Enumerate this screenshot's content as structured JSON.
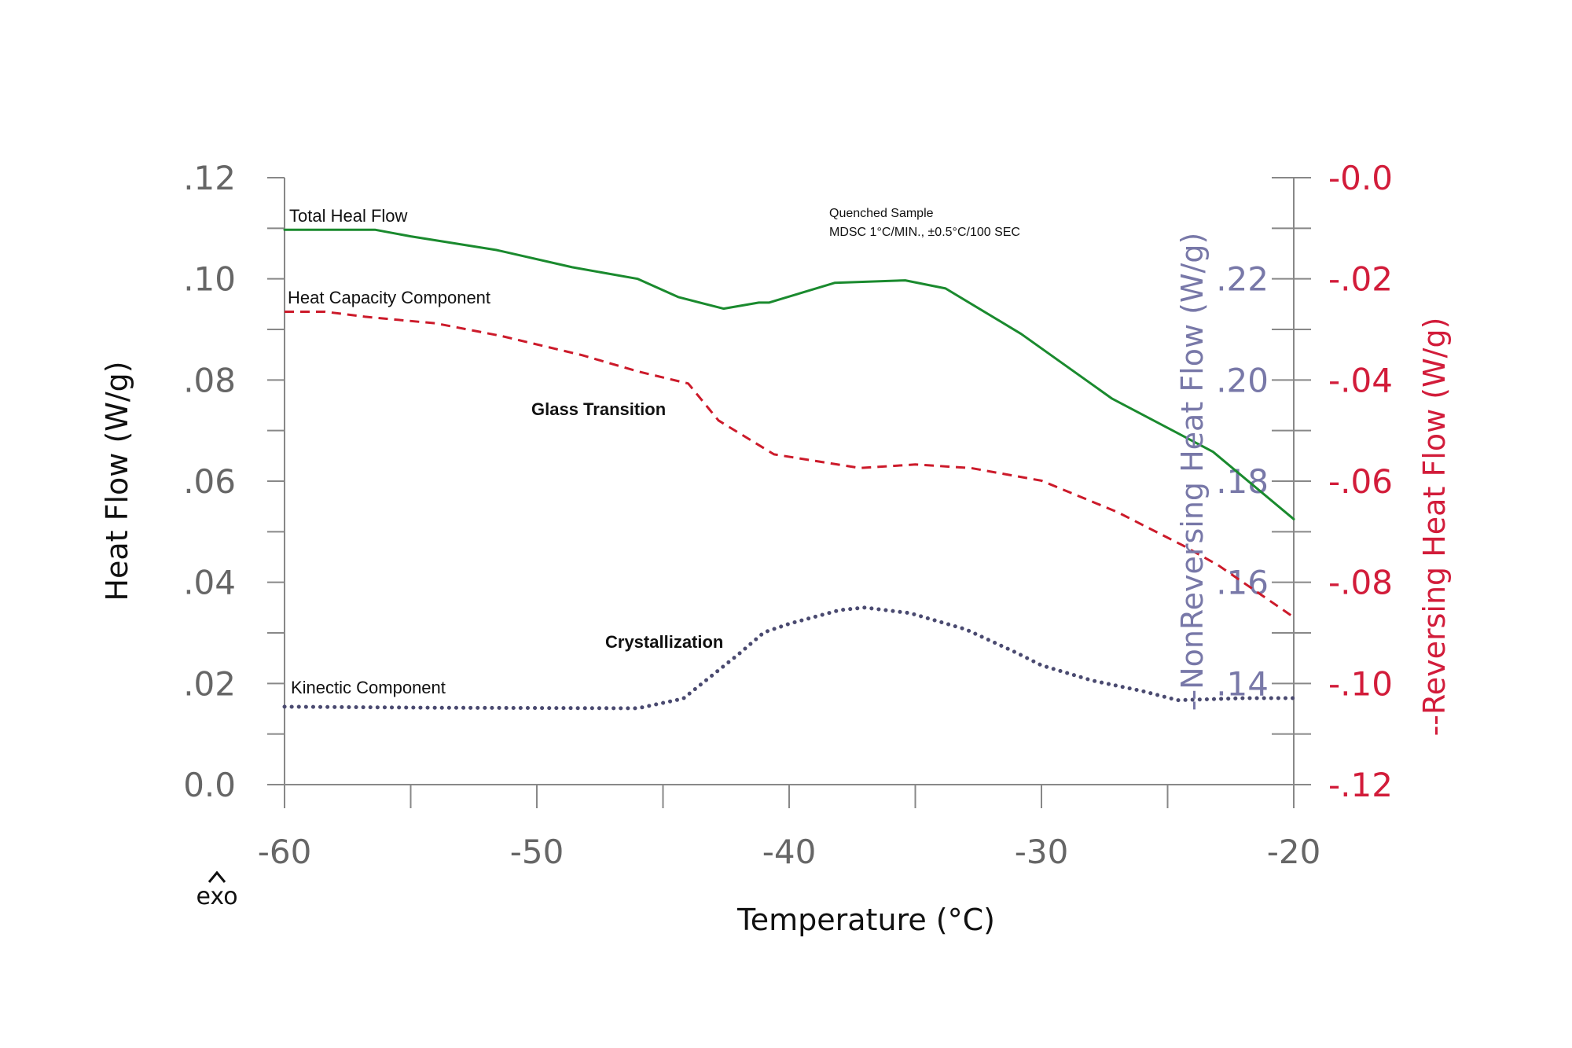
{
  "chart_data": {
    "type": "line",
    "xlabel": "Temperature (°C)",
    "ylabel_left": "Heat Flow (W/g)",
    "ylabel_right_inner": "--NonReversing Heat Flow (W/g)",
    "ylabel_right_outer": "--Reversing Heat Flow (W/g)",
    "xlim": [
      -60,
      -20
    ],
    "ylim_left": [
      0,
      0.12
    ],
    "ylim_right_inner": [
      0.12,
      0.24
    ],
    "ylim_right_outer": [
      -0.12,
      0.0
    ],
    "x_ticks": [
      "-60",
      "-50",
      "-40",
      "-30",
      "-20"
    ],
    "y_ticks_left": [
      ".12",
      ".10",
      ".08",
      ".06",
      ".04",
      ".02",
      "0.0"
    ],
    "y_ticks_right_inner": [
      ".22",
      ".20",
      ".18",
      ".16",
      ".14"
    ],
    "y_ticks_right_outer": [
      "-0.0",
      "-.02",
      "-.04",
      "-.06",
      "-.08",
      "-.10",
      "-.12"
    ],
    "series": [
      {
        "name": "Total Heal Flow",
        "axis": "left",
        "color": "#1a8a2e",
        "style": "solid",
        "x": [
          -60,
          -56.4,
          -55,
          -51.6,
          -48.6,
          -46,
          -44.4,
          -42.6,
          -41.2,
          -40.8,
          -38.2,
          -35.4,
          -33.8,
          -30.8,
          -27.2,
          -24.6,
          -23.2,
          -20
        ],
        "y": [
          0.1097,
          0.1097,
          0.1084,
          0.1057,
          0.1023,
          0.1,
          0.0964,
          0.0941,
          0.0953,
          0.0953,
          0.0992,
          0.0997,
          0.0981,
          0.0891,
          0.0763,
          0.0695,
          0.0658,
          0.0525
        ]
      },
      {
        "name": "Heat Capacity Component",
        "axis": "left",
        "color": "#cc1a2a",
        "style": "dashed",
        "x": [
          -60,
          -58.4,
          -56.8,
          -54,
          -51.4,
          -48.2,
          -46,
          -44,
          -42.8,
          -40.6,
          -37.2,
          -35,
          -32.8,
          -30,
          -27,
          -24.4,
          -23,
          -20
        ],
        "y": [
          0.0935,
          0.0935,
          0.0925,
          0.0912,
          0.0887,
          0.0849,
          0.0817,
          0.0793,
          0.072,
          0.0653,
          0.0626,
          0.0633,
          0.0626,
          0.0601,
          0.0539,
          0.0473,
          0.0434,
          0.0331
        ]
      },
      {
        "name": "Kinectic Component",
        "axis": "left",
        "color": "#4a4a70",
        "style": "dotted",
        "x": [
          -60,
          -54,
          -46,
          -44.2,
          -42,
          -41,
          -40,
          -38,
          -37,
          -35.2,
          -33,
          -31,
          -30,
          -28,
          -26,
          -24.6,
          -22,
          -20
        ],
        "y": [
          0.0154,
          0.0152,
          0.0151,
          0.017,
          0.0258,
          0.0301,
          0.0318,
          0.0345,
          0.035,
          0.0339,
          0.0307,
          0.0261,
          0.0236,
          0.0206,
          0.0185,
          0.0167,
          0.0171,
          0.0171
        ]
      }
    ],
    "annotations": {
      "total_label": "Total Heal Flow",
      "hcc_label": "Heat Capacity Component",
      "kin_label": "Kinectic Component",
      "glass": "Glass Transition",
      "crystal": "Crystallization",
      "sample_line1": "Quenched Sample",
      "sample_line2": "MDSC 1°C/MIN., ±0.5°C/100 SEC",
      "exo": "exo"
    },
    "colors": {
      "axis": "#888888",
      "inner_axis_text": "#7878a8",
      "outer_axis_text": "#d21c3a"
    },
    "grid": false
  }
}
